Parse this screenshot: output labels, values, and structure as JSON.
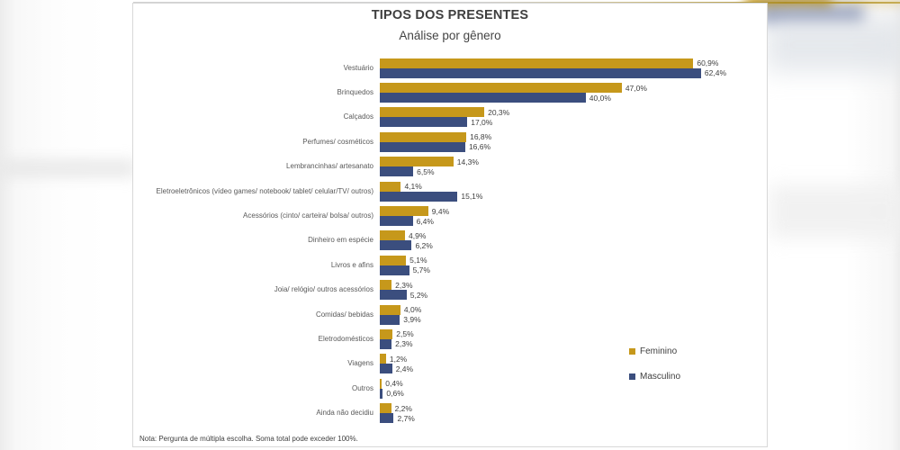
{
  "chart_data": {
    "type": "bar",
    "orientation": "horizontal",
    "title": "TIPOS DOS PRESENTES",
    "subtitle": "Análise por gênero",
    "xlim": [
      0,
      65
    ],
    "grid": false,
    "legend_position": "right",
    "categories": [
      "Vestuário",
      "Brinquedos",
      "Calçados",
      "Perfumes/ cosméticos",
      "Lembrancinhas/ artesanato",
      "Eletroeletrônicos (vídeo games/ notebook/ tablet/ celular/TV/ outros)",
      "Acessórios (cinto/ carteira/ bolsa/ outros)",
      "Dinheiro em espécie",
      "Livros e afins",
      "Joia/ relógio/ outros acessórios",
      "Comidas/ bebidas",
      "Eletrodomésticos",
      "Viagens",
      "Outros",
      "Ainda não decidiu"
    ],
    "series": [
      {
        "name": "Feminino",
        "color": "#C6981B",
        "values": [
          60.9,
          47.0,
          20.3,
          16.8,
          14.3,
          4.1,
          9.4,
          4.9,
          5.1,
          2.3,
          4.0,
          2.5,
          1.2,
          0.4,
          2.2
        ],
        "labels": [
          "60,9%",
          "47,0%",
          "20,3%",
          "16,8%",
          "14,3%",
          "4,1%",
          "9,4%",
          "4,9%",
          "5,1%",
          "2,3%",
          "4,0%",
          "2,5%",
          "1,2%",
          "0,4%",
          "2,2%"
        ]
      },
      {
        "name": "Masculino",
        "color": "#3B4E7E",
        "values": [
          62.4,
          40.0,
          17.0,
          16.6,
          6.5,
          15.1,
          6.4,
          6.2,
          5.7,
          5.2,
          3.9,
          2.3,
          2.4,
          0.6,
          2.7
        ],
        "labels": [
          "62,4%",
          "40,0%",
          "17,0%",
          "16,6%",
          "6,5%",
          "15,1%",
          "6,4%",
          "6,2%",
          "5,7%",
          "5,2%",
          "3,9%",
          "2,3%",
          "2,4%",
          "0,6%",
          "2,7%"
        ]
      }
    ],
    "note": "Nota: Pergunta de múltipla escolha. Soma total pode exceder 100%."
  }
}
